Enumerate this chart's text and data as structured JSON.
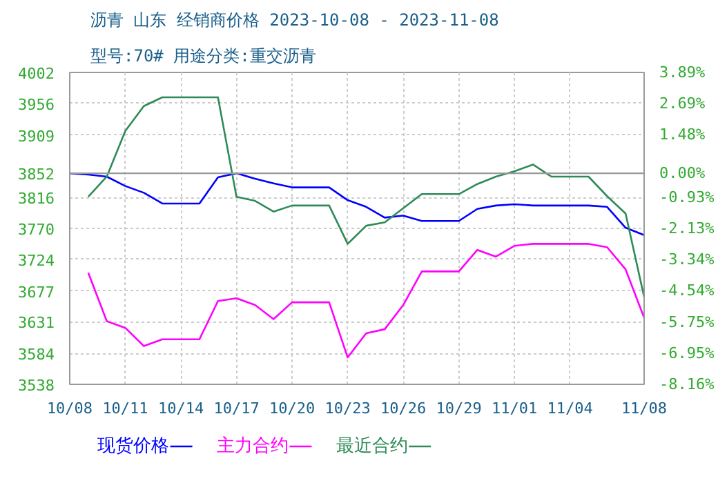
{
  "chart_data": {
    "type": "line",
    "title": "沥青  山东 经销商价格 2023-10-08 - 2023-11-08",
    "subtitle": "型号:70# 用途分类:重交沥青",
    "x": [
      "2023-10-08",
      "2023-10-09",
      "2023-10-10",
      "2023-10-11",
      "2023-10-12",
      "2023-10-13",
      "2023-10-14",
      "2023-10-15",
      "2023-10-16",
      "2023-10-17",
      "2023-10-18",
      "2023-10-19",
      "2023-10-20",
      "2023-10-21",
      "2023-10-22",
      "2023-10-23",
      "2023-10-24",
      "2023-10-25",
      "2023-10-26",
      "2023-10-27",
      "2023-10-28",
      "2023-10-29",
      "2023-10-30",
      "2023-10-31",
      "2023-11-01",
      "2023-11-02",
      "2023-11-03",
      "2023-11-04",
      "2023-11-05",
      "2023-11-06",
      "2023-11-07",
      "2023-11-08"
    ],
    "series": [
      {
        "name": "现货价格",
        "color": "#0000ff",
        "values": [
          3852,
          3850,
          3847,
          3833,
          3823,
          3807,
          3807,
          3807,
          3846,
          3852,
          3844,
          3837,
          3831,
          3831,
          3831,
          3812,
          3802,
          3786,
          3789,
          3781,
          3781,
          3781,
          3799,
          3804,
          3806,
          3804,
          3804,
          3804,
          3804,
          3802,
          3771,
          3760
        ]
      },
      {
        "name": "主力合约",
        "color": "#ff00ff",
        "values": [
          null,
          3704,
          3632,
          3622,
          3595,
          3605,
          3605,
          3605,
          3662,
          3666,
          3656,
          3635,
          3660,
          3660,
          3660,
          3578,
          3614,
          3620,
          3656,
          3706,
          3706,
          3706,
          3738,
          3728,
          3744,
          3747,
          3747,
          3747,
          3747,
          3742,
          3709,
          3637
        ]
      },
      {
        "name": "最近合约",
        "color": "#2e8b57",
        "values": [
          null,
          3817,
          3847,
          3915,
          3952,
          3965,
          3965,
          3965,
          3965,
          3817,
          3811,
          3795,
          3804,
          3804,
          3804,
          3747,
          3774,
          3779,
          3800,
          3821,
          3821,
          3821,
          3836,
          3847,
          3855,
          3865,
          3847,
          3847,
          3847,
          3818,
          3792,
          3668
        ]
      }
    ],
    "xlim": [
      "2023-10-08",
      "2023-11-08"
    ],
    "xticks": [
      {
        "value": "2023-10-08",
        "label": "10/08"
      },
      {
        "value": "2023-10-11",
        "label": "10/11"
      },
      {
        "value": "2023-10-14",
        "label": "10/14"
      },
      {
        "value": "2023-10-17",
        "label": "10/17"
      },
      {
        "value": "2023-10-20",
        "label": "10/20"
      },
      {
        "value": "2023-10-23",
        "label": "10/23"
      },
      {
        "value": "2023-10-26",
        "label": "10/26"
      },
      {
        "value": "2023-10-29",
        "label": "10/29"
      },
      {
        "value": "2023-11-01",
        "label": "11/01"
      },
      {
        "value": "2023-11-04",
        "label": "11/04"
      },
      {
        "value": "2023-11-08",
        "label": "11/08"
      }
    ],
    "ylim": [
      3538,
      4002
    ],
    "yticks": [
      3538,
      3584,
      3631,
      3677,
      3724,
      3770,
      3816,
      3852,
      3909,
      3956,
      4002
    ],
    "y2lim": [
      -8.16,
      3.89
    ],
    "y2ticks": [
      {
        "value": -8.16,
        "label": "-8.16%"
      },
      {
        "value": -6.95,
        "label": "-6.95%"
      },
      {
        "value": -5.75,
        "label": "-5.75%"
      },
      {
        "value": -4.54,
        "label": "-4.54%"
      },
      {
        "value": -3.34,
        "label": "-3.34%"
      },
      {
        "value": -2.13,
        "label": "-2.13%"
      },
      {
        "value": -0.93,
        "label": "-0.93%"
      },
      {
        "value": 0.0,
        "label": "0.00%"
      },
      {
        "value": 1.48,
        "label": "1.48%"
      },
      {
        "value": 2.69,
        "label": "2.69%"
      },
      {
        "value": 3.89,
        "label": "3.89%"
      }
    ],
    "ref_lines": [
      {
        "axis": "y",
        "value": 3852,
        "color": "#999999"
      }
    ],
    "grid": true,
    "legend": "bottom"
  }
}
